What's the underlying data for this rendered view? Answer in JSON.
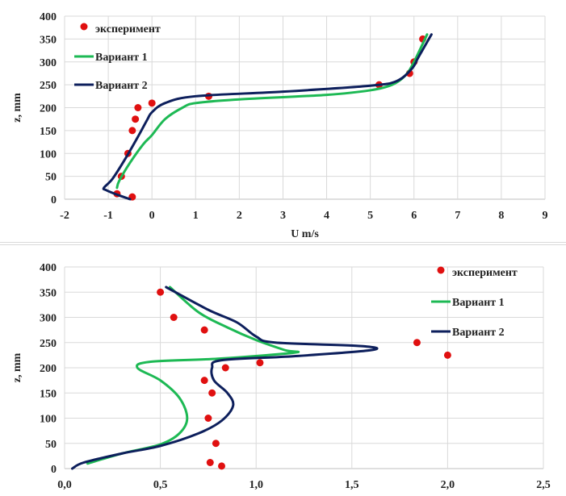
{
  "chart_data": [
    {
      "type": "line",
      "title": "",
      "xlabel": "U m/s",
      "ylabel": "z, mm",
      "xlim": [
        -2,
        9
      ],
      "ylim": [
        0,
        400
      ],
      "xticks": [
        "-2",
        "-1",
        "0",
        "1",
        "2",
        "3",
        "4",
        "5",
        "6",
        "7",
        "8",
        "9"
      ],
      "yticks": [
        "0",
        "50",
        "100",
        "150",
        "200",
        "250",
        "300",
        "350",
        "400"
      ],
      "grid": true,
      "legend_position": "top-left",
      "series": [
        {
          "name": "эксперимент",
          "kind": "scatter",
          "color": "#e01010",
          "x": [
            -0.45,
            -0.8,
            -0.7,
            -0.55,
            -0.45,
            -0.38,
            -0.32,
            0.0,
            1.3,
            5.2,
            5.9,
            6.0,
            6.2
          ],
          "y": [
            5,
            12,
            50,
            100,
            150,
            175,
            200,
            210,
            225,
            250,
            275,
            300,
            350
          ]
        },
        {
          "name": "Вариант 1",
          "kind": "line",
          "color": "#1db954",
          "x": [
            -0.8,
            -0.75,
            -0.5,
            -0.2,
            0.0,
            0.3,
            0.7,
            1.0,
            2.0,
            4.0,
            5.0,
            5.5,
            5.8,
            6.0,
            6.3
          ],
          "y": [
            25,
            40,
            80,
            120,
            140,
            175,
            200,
            210,
            218,
            228,
            238,
            250,
            270,
            300,
            360
          ]
        },
        {
          "name": "Вариант 2",
          "kind": "line",
          "color": "#0d1f5c",
          "x": [
            -0.5,
            -0.8,
            -1.05,
            -1.1,
            -0.9,
            -0.6,
            -0.3,
            -0.1,
            0.0,
            0.3,
            1.0,
            3.0,
            5.0,
            5.6,
            5.95,
            6.1,
            6.4
          ],
          "y": [
            0,
            10,
            20,
            25,
            45,
            90,
            140,
            175,
            190,
            210,
            225,
            235,
            248,
            258,
            285,
            310,
            360
          ]
        }
      ]
    },
    {
      "type": "line",
      "title": "",
      "xlabel": "",
      "ylabel": "z, mm",
      "xlim": [
        0,
        2.5
      ],
      "ylim": [
        0,
        400
      ],
      "xticks": [
        "0,0",
        "0,5",
        "1,0",
        "1,5",
        "2,0",
        "2,5"
      ],
      "yticks": [
        "0",
        "50",
        "100",
        "150",
        "200",
        "250",
        "300",
        "350",
        "400"
      ],
      "grid": true,
      "legend_position": "top-right",
      "series": [
        {
          "name": "эксперимент",
          "kind": "scatter",
          "color": "#e01010",
          "x": [
            0.5,
            0.57,
            0.73,
            1.84,
            2.0,
            1.02,
            0.84,
            0.73,
            0.77,
            0.75,
            0.79,
            0.76,
            0.82
          ],
          "y": [
            350,
            300,
            275,
            250,
            225,
            210,
            200,
            175,
            150,
            100,
            50,
            12,
            5
          ]
        },
        {
          "name": "Вариант 1",
          "kind": "line",
          "color": "#1db954",
          "x": [
            0.12,
            0.3,
            0.5,
            0.6,
            0.64,
            0.6,
            0.5,
            0.38,
            0.45,
            0.8,
            1.2,
            1.15,
            1.0,
            0.85,
            0.7,
            0.55
          ],
          "y": [
            10,
            30,
            48,
            70,
            100,
            140,
            175,
            200,
            212,
            218,
            230,
            235,
            255,
            280,
            310,
            360
          ]
        },
        {
          "name": "Вариант 2",
          "kind": "line",
          "color": "#0d1f5c",
          "x": [
            0.04,
            0.1,
            0.3,
            0.5,
            0.7,
            0.82,
            0.88,
            0.85,
            0.78,
            0.77,
            0.82,
            1.2,
            1.6,
            1.55,
            1.1,
            1.0,
            0.9,
            0.75,
            0.53
          ],
          "y": [
            0,
            12,
            30,
            45,
            70,
            95,
            125,
            150,
            175,
            200,
            215,
            223,
            235,
            243,
            250,
            262,
            290,
            315,
            360
          ]
        }
      ]
    }
  ]
}
